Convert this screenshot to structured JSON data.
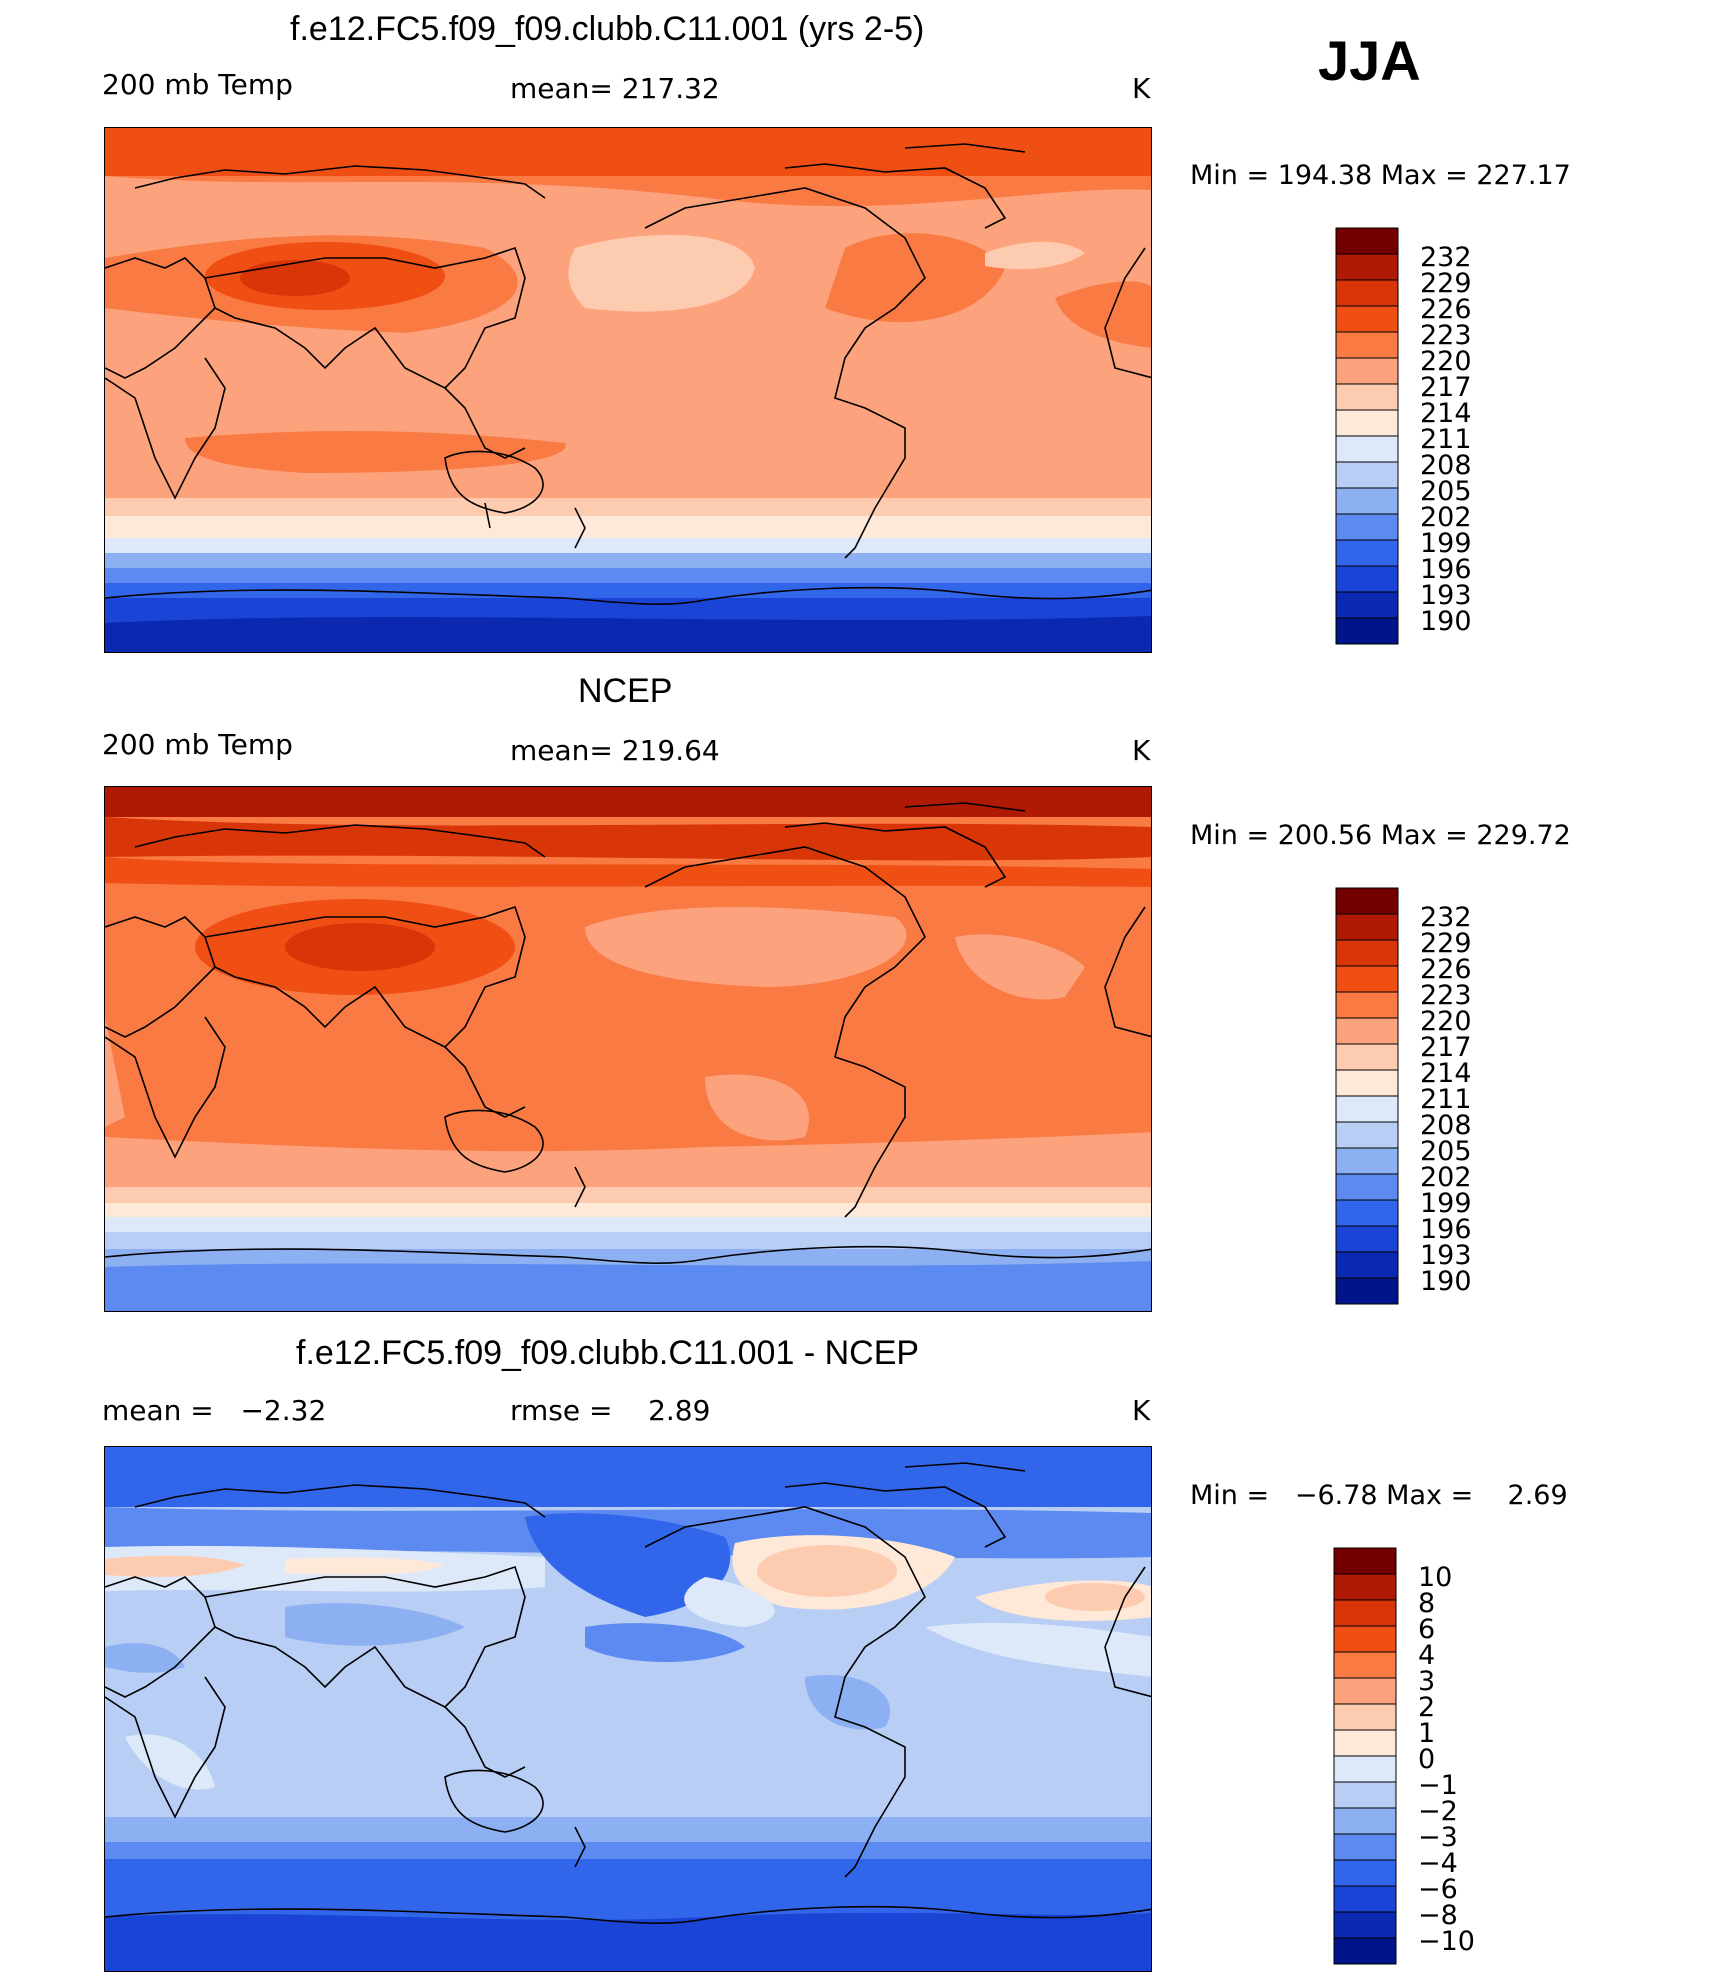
{
  "season": "JJA",
  "panels": [
    {
      "id": "model",
      "title": "f.e12.FC5.f09_f09.clubb.C11.001 (yrs 2-5)",
      "left_label": "200 mb Temp",
      "center_label": "mean= 217.32",
      "unit": "K",
      "min_max": "Min = 194.38 Max = 227.17",
      "colorbar_labels": [
        "232",
        "229",
        "226",
        "223",
        "220",
        "217",
        "214",
        "211",
        "208",
        "205",
        "202",
        "199",
        "196",
        "193",
        "190"
      ]
    },
    {
      "id": "obs",
      "title": "NCEP",
      "left_label": "200 mb Temp",
      "center_label": "mean= 219.64",
      "unit": "K",
      "min_max": "Min = 200.56 Max = 229.72",
      "colorbar_labels": [
        "232",
        "229",
        "226",
        "223",
        "220",
        "217",
        "214",
        "211",
        "208",
        "205",
        "202",
        "199",
        "196",
        "193",
        "190"
      ]
    },
    {
      "id": "diff",
      "title": "f.e12.FC5.f09_f09.clubb.C11.001 - NCEP",
      "left_label": "mean =   −2.32",
      "center_label": "rmse =    2.89",
      "unit": "K",
      "min_max": "Min =   −6.78 Max =    2.69",
      "colorbar_labels": [
        "10",
        "8",
        "6",
        "4",
        "3",
        "2",
        "1",
        "0",
        "−1",
        "−2",
        "−3",
        "−4",
        "−6",
        "−8",
        "−10"
      ]
    }
  ],
  "colors": {
    "palette": [
      "#730000",
      "#b01a05",
      "#d83508",
      "#f04f14",
      "#fa7a44",
      "#fca27c",
      "#fdccb0",
      "#fee8d8",
      "#dde9f8",
      "#b8cef4",
      "#8db0f2",
      "#5c8af0",
      "#3266ea",
      "#1a44d6",
      "#0a28b0",
      "#00158a"
    ]
  }
}
